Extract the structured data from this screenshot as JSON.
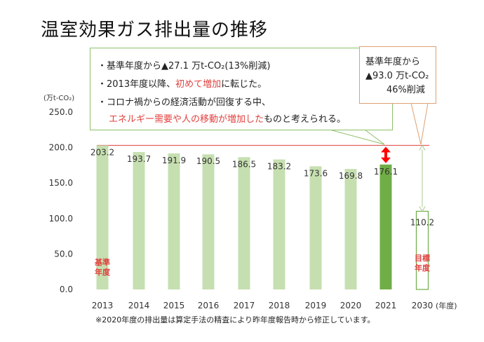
{
  "title": "温室効果ガス排出量の推移",
  "callout_main": {
    "line1": "・基準年度から▲27.1 万t-CO₂(13%削減)",
    "line2_pre": "・2013年度以降、",
    "line2_red": "初めて増加",
    "line2_post": "に転じた。",
    "line3": "・コロナ禍からの経済活動が回復する中、",
    "line4_red": "エネルギー需要や人の移動が増加した",
    "line4_post": "ものと考えられる。"
  },
  "callout_target": {
    "line1": "基準年度から",
    "line2": "▲93.0 万t-CO₂",
    "line3": "46%削減"
  },
  "footnote": "※2020年度の排出量は算定手法の精査により昨年度報告時から修正しています。",
  "colors": {
    "bar": "#c6dfb0",
    "bar_highlight": "#70ad47",
    "target_border": "#70ad47",
    "baseline_line": "#e0413e",
    "arrow": "#ff0000",
    "accent_red": "#e0413e"
  },
  "chart_data": {
    "type": "bar",
    "unit_label": "(万t-CO₂)",
    "xlabel": "(年度)",
    "categories": [
      "2013",
      "2014",
      "2015",
      "2016",
      "2017",
      "2018",
      "2019",
      "2020",
      "2021",
      "2030"
    ],
    "values": [
      203.2,
      193.7,
      191.9,
      190.5,
      186.5,
      183.2,
      173.6,
      169.8,
      176.1,
      110.2
    ],
    "labels": [
      "203.2",
      "193.7",
      "191.9",
      "190.5",
      "186.5",
      "183.2",
      "173.6",
      "169.8",
      "176.1",
      "110.2"
    ],
    "highlight": "2021",
    "target": "2030",
    "ylim": [
      0,
      250
    ],
    "yticks": [
      "0.0",
      "50.0",
      "100.0",
      "150.0",
      "200.0",
      "250.0"
    ],
    "base_year_label": "基準\n年度",
    "target_year_label": "目標\n年度",
    "grid": false
  }
}
